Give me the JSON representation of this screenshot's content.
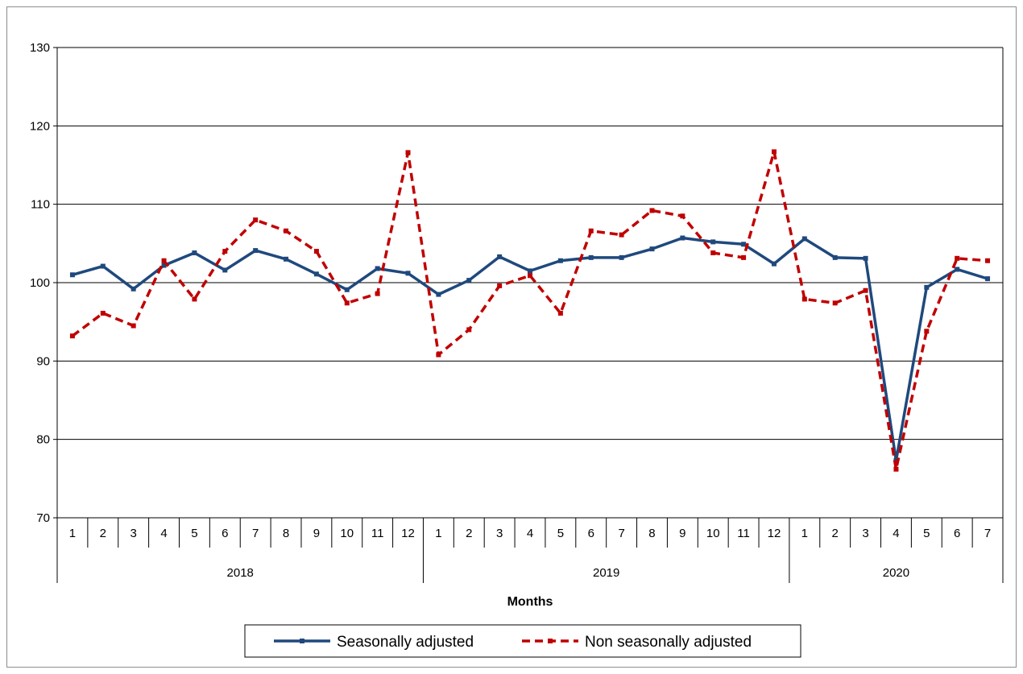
{
  "chart_data": {
    "type": "line",
    "xlabel": "Months",
    "ylabel": "",
    "title": "",
    "ylim": [
      70,
      130
    ],
    "yticks": [
      70,
      80,
      90,
      100,
      110,
      120,
      130
    ],
    "grid": true,
    "legend_position": "bottom",
    "categories": [
      "1",
      "2",
      "3",
      "4",
      "5",
      "6",
      "7",
      "8",
      "9",
      "10",
      "11",
      "12",
      "1",
      "2",
      "3",
      "4",
      "5",
      "6",
      "7",
      "8",
      "9",
      "10",
      "11",
      "12",
      "1",
      "2",
      "3",
      "4",
      "5",
      "6",
      "7"
    ],
    "year_groups": [
      {
        "label": "2018",
        "count": 12
      },
      {
        "label": "2019",
        "count": 12
      },
      {
        "label": "2020",
        "count": 7
      }
    ],
    "series": [
      {
        "name": "Seasonally adjusted",
        "color": "#1f497d",
        "style": "solid",
        "values": [
          101.0,
          102.1,
          99.2,
          102.2,
          103.8,
          101.6,
          104.1,
          103.0,
          101.1,
          99.1,
          101.8,
          101.2,
          98.5,
          100.3,
          103.3,
          101.5,
          102.8,
          103.2,
          103.2,
          104.3,
          105.7,
          105.2,
          104.9,
          102.4,
          105.6,
          103.2,
          103.1,
          77.3,
          99.4,
          101.7,
          100.5
        ]
      },
      {
        "name": "Non seasonally adjusted",
        "color": "#c00000",
        "style": "dashed",
        "values": [
          93.2,
          96.1,
          94.5,
          102.8,
          97.9,
          104.0,
          108.0,
          106.6,
          104.0,
          97.4,
          98.6,
          116.6,
          90.8,
          94.0,
          99.6,
          100.9,
          96.1,
          106.6,
          106.1,
          109.2,
          108.5,
          103.8,
          103.2,
          116.7,
          97.9,
          97.4,
          99.0,
          76.2,
          93.8,
          103.1,
          102.8
        ]
      }
    ]
  }
}
